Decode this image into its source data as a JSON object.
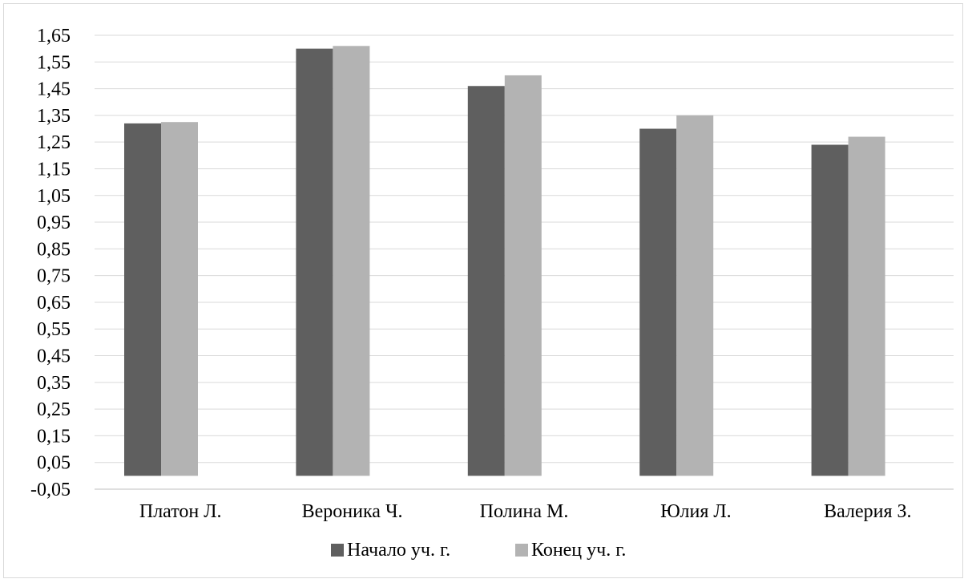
{
  "chart_data": {
    "type": "bar",
    "categories": [
      "Платон Л.",
      "Вероника Ч.",
      "Полина М.",
      "Юлия Л.",
      "Валерия З."
    ],
    "series": [
      {
        "name": "Начало уч. г.",
        "color": "#5f5f5f",
        "values": [
          1.32,
          1.6,
          1.46,
          1.3,
          1.24
        ]
      },
      {
        "name": "Конец уч. г.",
        "color": "#b3b3b3",
        "values": [
          1.325,
          1.61,
          1.5,
          1.35,
          1.27
        ]
      }
    ],
    "title": "",
    "xlabel": "",
    "ylabel": "",
    "ylim": [
      -0.05,
      1.65
    ],
    "yticks": [
      "-0,05",
      "0,05",
      "0,15",
      "0,25",
      "0,35",
      "0,45",
      "0,55",
      "0,65",
      "0,75",
      "0,85",
      "0,95",
      "1,05",
      "1,15",
      "1,25",
      "1,35",
      "1,45",
      "1,55",
      "1,65"
    ],
    "grid": true,
    "legend": "bottom"
  }
}
